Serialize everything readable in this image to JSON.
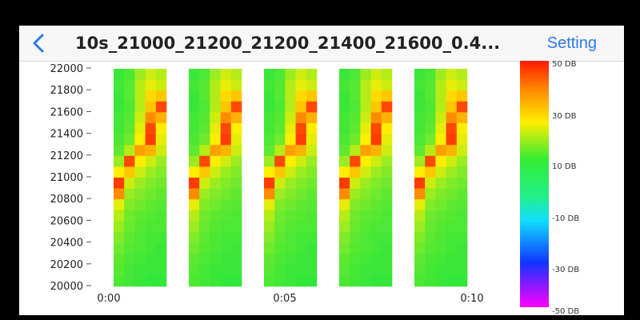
{
  "navbar": {
    "title": "10s_21000_21200_21200_21400_21600_0.4...",
    "setting_label": "Setting",
    "back_icon": "chevron-left-icon"
  },
  "chart_data": {
    "type": "heatmap",
    "title": "",
    "xlabel": "",
    "ylabel": "",
    "y_ticks": [
      "22000",
      "21800",
      "21600",
      "21400",
      "21200",
      "21000",
      "20800",
      "20600",
      "20400",
      "20200",
      "20000"
    ],
    "y_range": [
      20000,
      22000
    ],
    "x_ticks": [
      "0:00",
      "0:05",
      "0:10"
    ],
    "x_range_seconds": [
      0,
      10
    ],
    "colorbar": {
      "labels": [
        "50 DB",
        "30 DB",
        "10 DB",
        "-10 DB",
        "-30 DB",
        "-50 DB"
      ],
      "range": [
        -50,
        50
      ]
    },
    "blocks": 5,
    "columns_per_block": 5,
    "rows": 20,
    "cell_values": [
      [
        12,
        14,
        22,
        26,
        24
      ],
      [
        13,
        15,
        24,
        28,
        26
      ],
      [
        12,
        15,
        24,
        32,
        34
      ],
      [
        12,
        14,
        24,
        34,
        46
      ],
      [
        13,
        15,
        26,
        40,
        36
      ],
      [
        13,
        16,
        28,
        46,
        30
      ],
      [
        14,
        18,
        30,
        47,
        28
      ],
      [
        16,
        24,
        38,
        36,
        26
      ],
      [
        22,
        46,
        30,
        26,
        22
      ],
      [
        30,
        34,
        26,
        22,
        20
      ],
      [
        47,
        26,
        22,
        20,
        18
      ],
      [
        40,
        22,
        20,
        18,
        16
      ],
      [
        28,
        20,
        18,
        16,
        15
      ],
      [
        24,
        18,
        16,
        15,
        14
      ],
      [
        22,
        17,
        15,
        14,
        14
      ],
      [
        20,
        16,
        14,
        13,
        13
      ],
      [
        18,
        15,
        14,
        13,
        12
      ],
      [
        16,
        14,
        13,
        12,
        12
      ],
      [
        15,
        13,
        12,
        12,
        12
      ],
      [
        14,
        13,
        12,
        11,
        11
      ]
    ]
  }
}
